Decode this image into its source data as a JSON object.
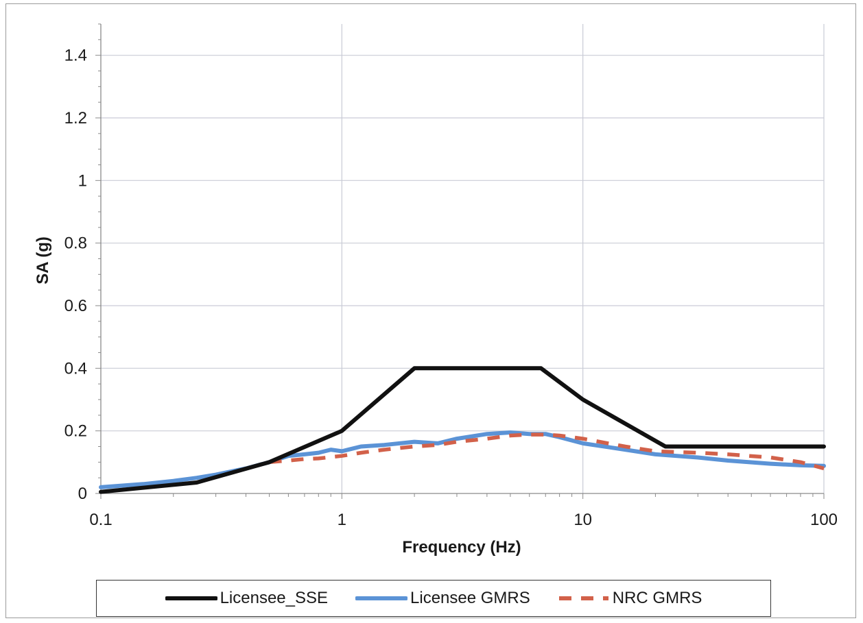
{
  "chart_data": {
    "type": "line",
    "title": "",
    "xlabel": "Frequency (Hz)",
    "ylabel": "SA (g)",
    "xscale": "log",
    "xlim": [
      0.1,
      100
    ],
    "ylim": [
      0,
      1.5
    ],
    "x_ticks": [
      "0.1",
      "1",
      "10",
      "100"
    ],
    "y_ticks": [
      "0",
      "0.2",
      "0.4",
      "0.6",
      "0.8",
      "1",
      "1.2",
      "1.4"
    ],
    "grid": true,
    "legend_position": "bottom",
    "series": [
      {
        "name": "Licensee_SSE",
        "color": "#111111",
        "style": "solid",
        "x": [
          0.1,
          0.25,
          0.5,
          1,
          2,
          6.7,
          10,
          22,
          100
        ],
        "y": [
          0.005,
          0.035,
          0.1,
          0.2,
          0.4,
          0.4,
          0.3,
          0.15,
          0.15
        ]
      },
      {
        "name": "Licensee GMRS",
        "color": "#5b93d6",
        "style": "solid",
        "x": [
          0.1,
          0.15,
          0.2,
          0.25,
          0.3,
          0.4,
          0.5,
          0.6,
          0.7,
          0.8,
          0.9,
          1,
          1.2,
          1.5,
          2,
          2.5,
          3,
          4,
          5,
          6,
          7,
          8,
          10,
          15,
          20,
          30,
          40,
          60,
          80,
          100
        ],
        "y": [
          0.02,
          0.03,
          0.04,
          0.05,
          0.06,
          0.08,
          0.1,
          0.12,
          0.125,
          0.13,
          0.14,
          0.135,
          0.15,
          0.155,
          0.165,
          0.16,
          0.175,
          0.19,
          0.195,
          0.19,
          0.19,
          0.18,
          0.16,
          0.14,
          0.125,
          0.115,
          0.105,
          0.095,
          0.09,
          0.088
        ]
      },
      {
        "name": "NRC GMRS",
        "color": "#d2614a",
        "style": "dashed",
        "x": [
          0.5,
          0.6,
          0.7,
          0.8,
          1,
          1.2,
          1.5,
          2,
          2.5,
          3,
          4,
          5,
          6,
          7,
          8,
          10,
          15,
          20,
          30,
          40,
          60,
          80,
          100
        ],
        "y": [
          0.1,
          0.105,
          0.11,
          0.112,
          0.12,
          0.13,
          0.14,
          0.15,
          0.155,
          0.165,
          0.175,
          0.185,
          0.188,
          0.188,
          0.185,
          0.175,
          0.15,
          0.135,
          0.13,
          0.125,
          0.115,
          0.1,
          0.08
        ]
      }
    ]
  }
}
